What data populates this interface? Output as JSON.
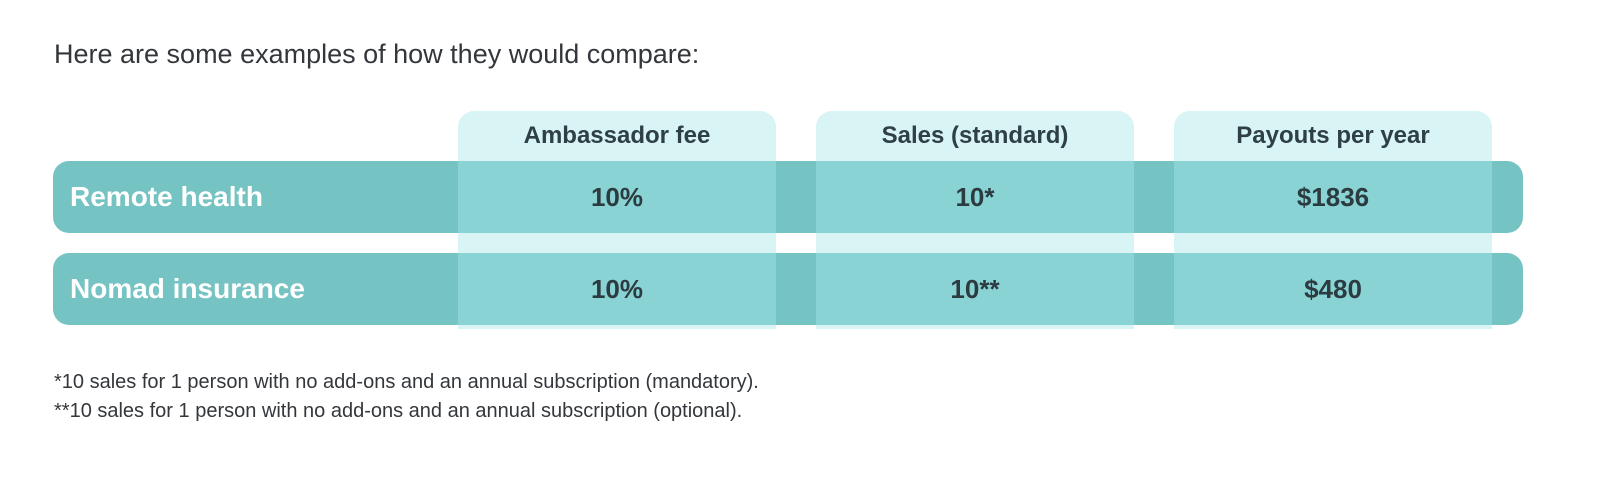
{
  "intro": "Here are some examples of how they would compare:",
  "columns": [
    {
      "label": "Ambassador fee"
    },
    {
      "label": "Sales (standard)"
    },
    {
      "label": "Payouts per year"
    }
  ],
  "rows": [
    {
      "label": "Remote health",
      "values": [
        "10%",
        "10*",
        "$1836"
      ]
    },
    {
      "label": "Nomad insurance",
      "values": [
        "10%",
        "10**",
        "$480"
      ]
    }
  ],
  "footnotes": [
    "*10 sales for 1 person with no add-ons and an annual subscription (mandatory).",
    "**10 sales for 1 person with no add-ons and an annual subscription (optional)."
  ],
  "colors": {
    "row_band": "#76c3c4",
    "cell": "#89d3d5",
    "column_highlight": "#d9f4f4"
  }
}
